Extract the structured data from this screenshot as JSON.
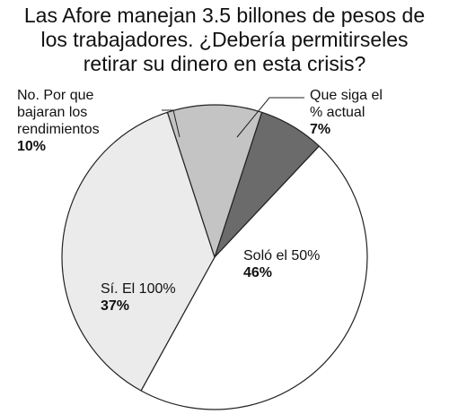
{
  "chart_data": {
    "type": "pie",
    "title": "Las Afore manejan 3.5 billones de pesos de los trabajadores. ¿Debería permitírseles retirar su dinero en esta crisis?",
    "title_lines": [
      "Las Afore manejan 3.5 billones de pesos de",
      "los trabajadores. ¿Debería permitirseles",
      "retirar su dinero en esta crisis?"
    ],
    "slices": [
      {
        "label": "Que siga el % actual",
        "label_lines": [
          "Que siga el",
          "% actual"
        ],
        "value": 7,
        "value_label": "7%",
        "color": "#6b6b6b"
      },
      {
        "label": "Soló el 50%",
        "label_lines": [
          "Soló el 50%"
        ],
        "value": 46,
        "value_label": "46%",
        "color": "#ffffff"
      },
      {
        "label": "Sí. El 100%",
        "label_lines": [
          "Sí. El 100%"
        ],
        "value": 37,
        "value_label": "37%",
        "color": "#ebebeb"
      },
      {
        "label": "No. Por que bajaran los rendimientos",
        "label_lines": [
          "No. Por que",
          "bajaran los",
          "rendimientos"
        ],
        "value": 10,
        "value_label": "10%",
        "color": "#c4c4c4"
      }
    ],
    "stroke_color": "#222222",
    "legend": "none"
  }
}
